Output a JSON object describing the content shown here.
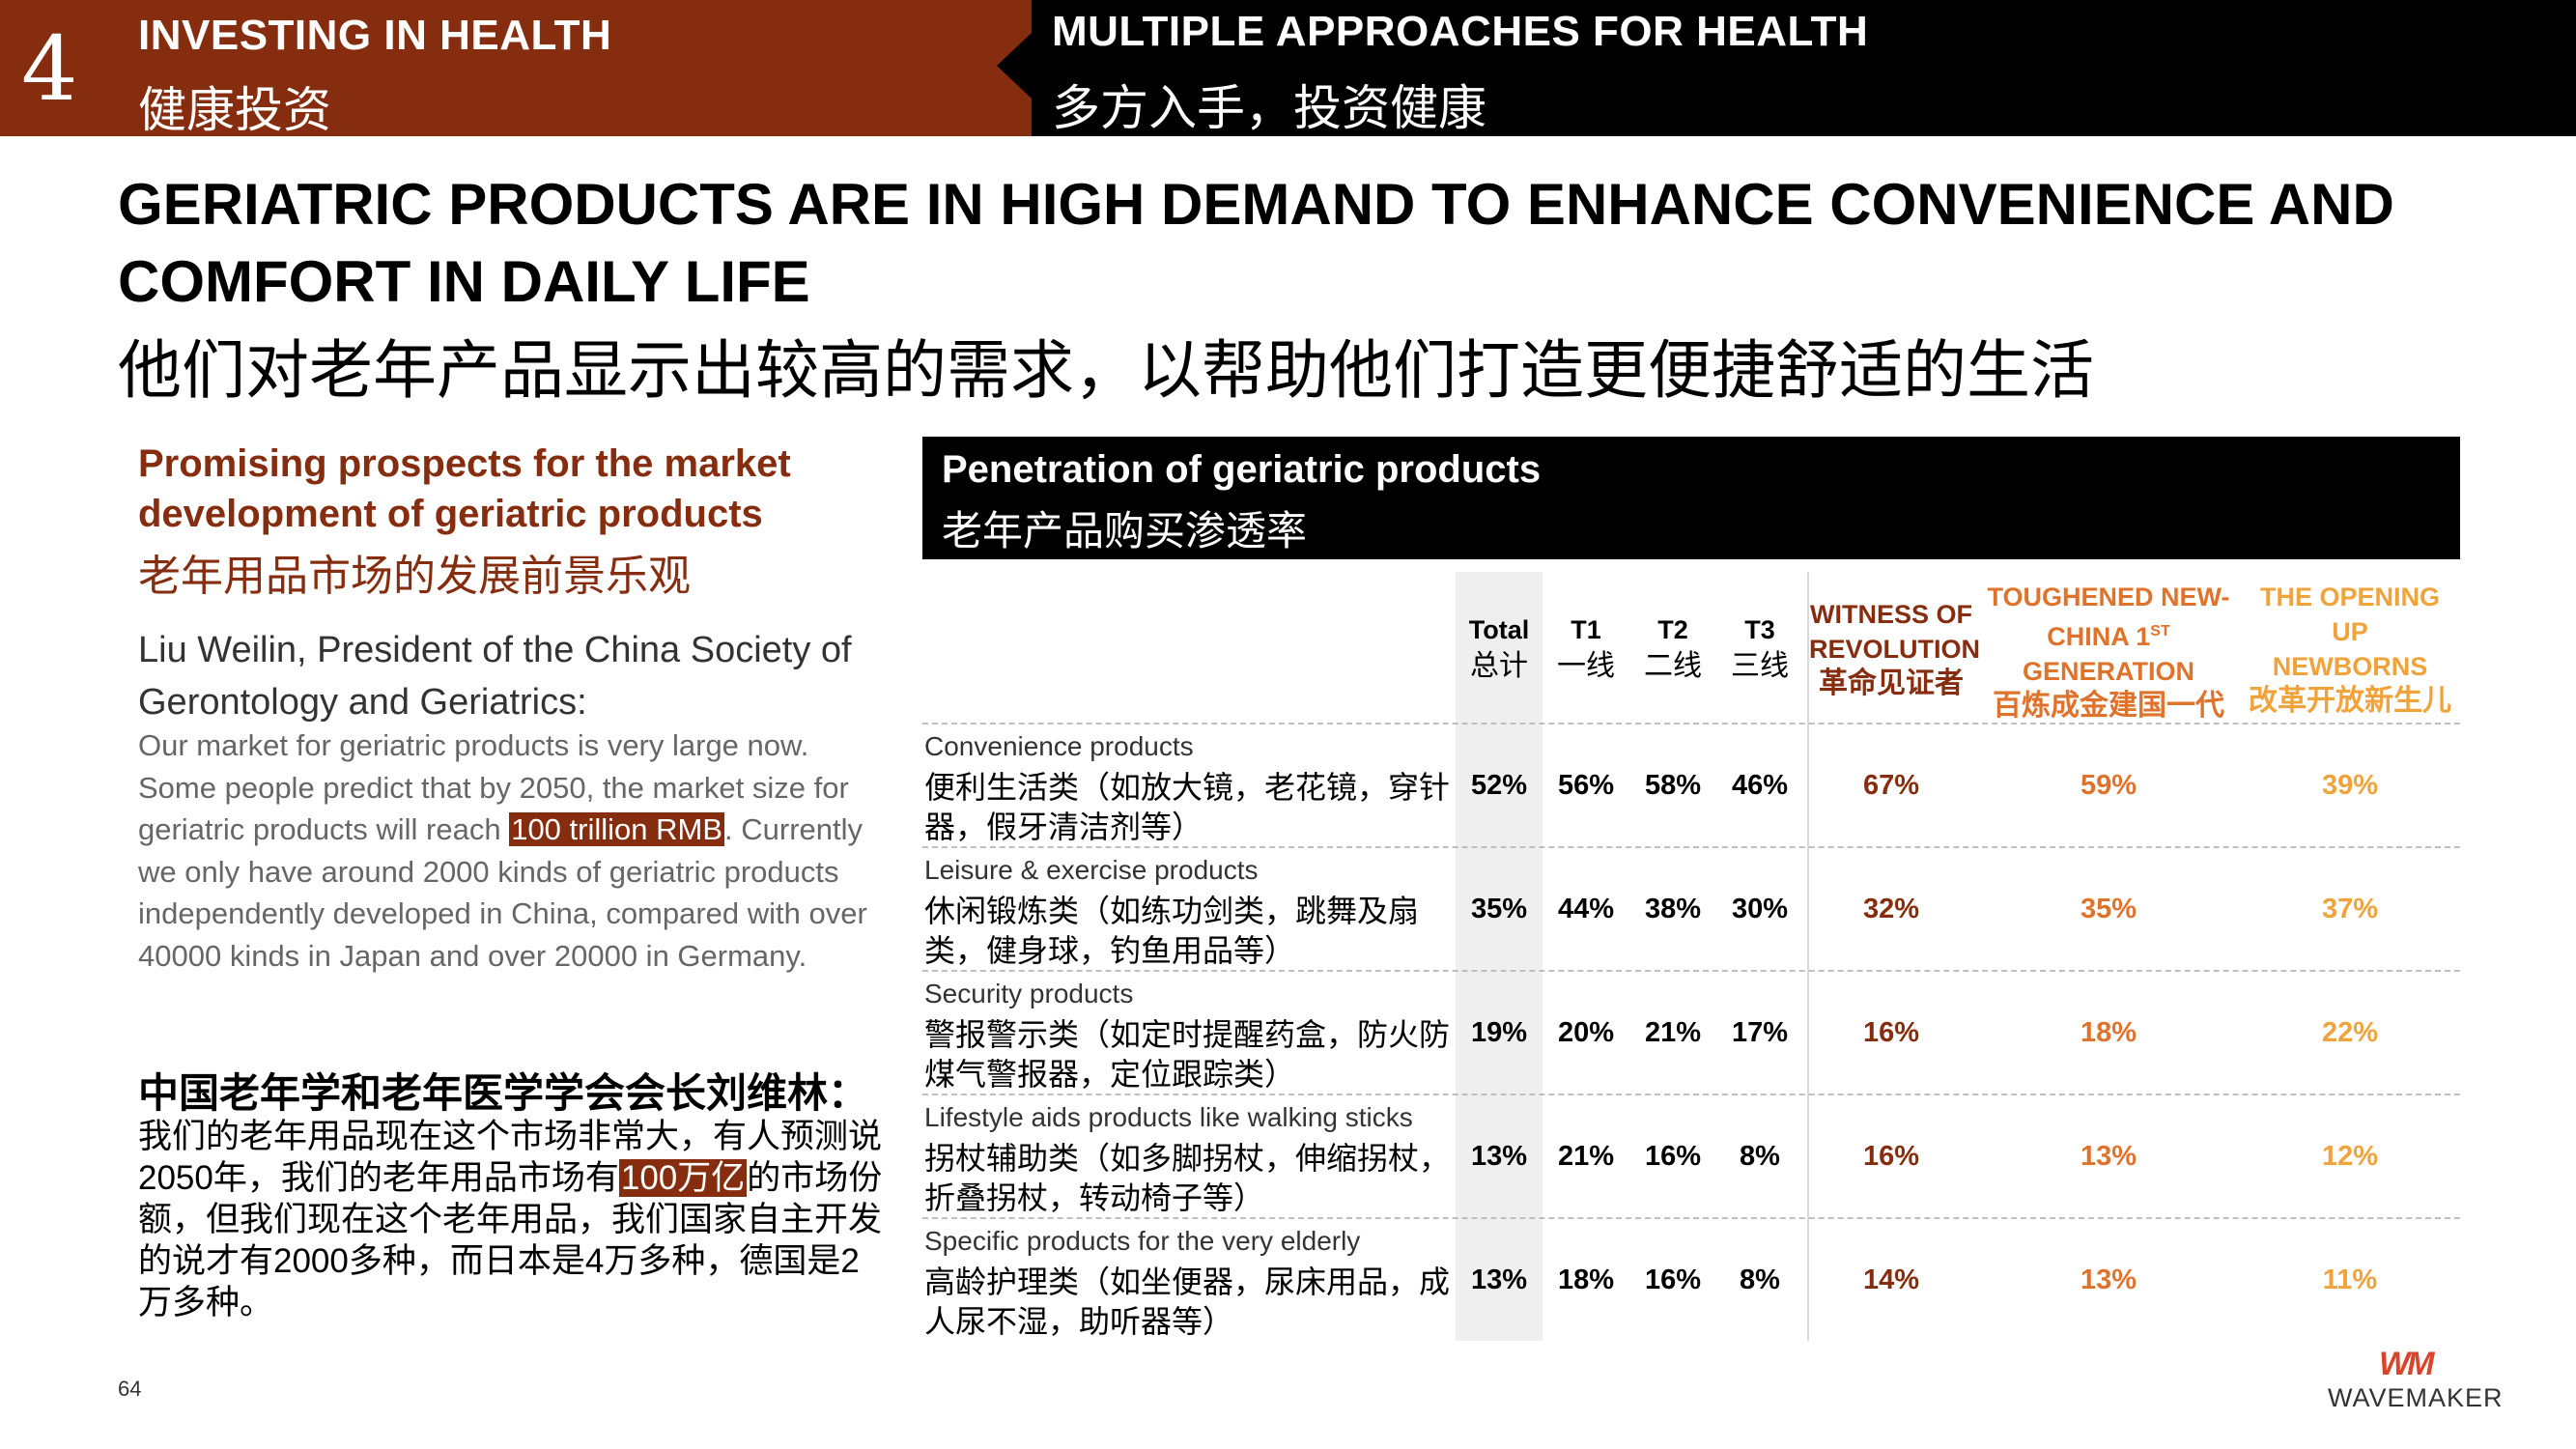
{
  "header": {
    "section_number": "4",
    "section_en": "INVESTING IN HEALTH",
    "section_zh": "健康投资",
    "topic_en": "MULTIPLE APPROACHES FOR HEALTH",
    "topic_zh": "多方入手，投资健康"
  },
  "title": {
    "en": "GERIATRIC PRODUCTS ARE IN HIGH DEMAND TO ENHANCE CONVENIENCE AND COMFORT IN DAILY LIFE",
    "zh": "他们对老年产品显示出较高的需求，以帮助他们打造更便捷舒适的生活"
  },
  "left": {
    "heading_en": "Promising prospects for the market development of geriatric products",
    "heading_zh": "老年用品市场的发展前景乐观",
    "speaker_en": "Liu Weilin, President of the China Society of Gerontology and Geriatrics:",
    "quote_en_pre": "Our market for geriatric products is very large now. Some people predict that by 2050, the market size for geriatric products will reach ",
    "quote_en_highlight": "100 trillion RMB",
    "quote_en_post": ". Currently we only have around 2000 kinds of geriatric products independently developed in China, compared with over 40000 kinds in Japan and over 20000 in Germany.",
    "speaker_zh": "中国老年学和老年医学学会会长刘维林：",
    "quote_zh_pre": "我们的老年用品现在这个市场非常大，有人预测说2050年，我们的老年用品市场有",
    "quote_zh_highlight": "100万亿",
    "quote_zh_post": "的市场份额，但我们现在这个老年用品，我们国家自主开发的说才有2000多种，而日本是4万多种，德国是2万多种。"
  },
  "table": {
    "title_en": "Penetration of geriatric products",
    "title_zh": "老年产品购买渗透率",
    "columns": {
      "total_en": "Total",
      "total_zh": "总计",
      "t1_en": "T1",
      "t1_zh": "一线",
      "t2_en": "T2",
      "t2_zh": "二线",
      "t3_en": "T3",
      "t3_zh": "三线",
      "g1_en1": "WITNESS OF",
      "g1_en2": "REVOLUTION",
      "g1_zh": "革命见证者",
      "g2_en1": "TOUGHENED NEW-",
      "g2_en2": "CHINA 1",
      "g2_sup": "ST",
      "g2_en3": "GENERATION",
      "g2_zh": "百炼成金建国一代",
      "g3_en1": "THE OPENING",
      "g3_en2": "UP",
      "g3_en3": "NEWBORNS",
      "g3_zh": "改革开放新生儿"
    },
    "rows": [
      {
        "en": "Convenience products",
        "zh": "便利生活类（如放大镜，老花镜，穿针器，假牙清洁剂等）",
        "total": "52%",
        "t1": "56%",
        "t2": "58%",
        "t3": "46%",
        "g1": "67%",
        "g2": "59%",
        "g3": "39%"
      },
      {
        "en": "Leisure & exercise products",
        "zh": "休闲锻炼类（如练功剑类，跳舞及扇类，健身球，钓鱼用品等）",
        "total": "35%",
        "t1": "44%",
        "t2": "38%",
        "t3": "30%",
        "g1": "32%",
        "g2": "35%",
        "g3": "37%"
      },
      {
        "en": "Security products",
        "zh": "警报警示类（如定时提醒药盒，防火防煤气警报器，定位跟踪类）",
        "total": "19%",
        "t1": "20%",
        "t2": "21%",
        "t3": "17%",
        "g1": "16%",
        "g2": "18%",
        "g3": "22%"
      },
      {
        "en": "Lifestyle aids products like walking sticks",
        "zh": "拐杖辅助类（如多脚拐杖，伸缩拐杖，折叠拐杖，转动椅子等）",
        "total": "13%",
        "t1": "21%",
        "t2": "16%",
        "t3": "8%",
        "g1": "16%",
        "g2": "13%",
        "g3": "12%"
      },
      {
        "en": "Specific products for the very elderly",
        "zh": "高龄护理类（如坐便器，尿床用品，成人尿不湿，助听器等）",
        "total": "13%",
        "t1": "18%",
        "t2": "16%",
        "t3": "8%",
        "g1": "14%",
        "g2": "13%",
        "g3": "11%"
      }
    ]
  },
  "footer": {
    "page_number": "64",
    "logo_mark": "WM",
    "logo_text": "WAVEMAKER"
  },
  "colors": {
    "brand_brown": "#862d0f",
    "gen_mid": "#e0732b",
    "gen_light": "#f0a33a",
    "header_black": "#000000"
  }
}
